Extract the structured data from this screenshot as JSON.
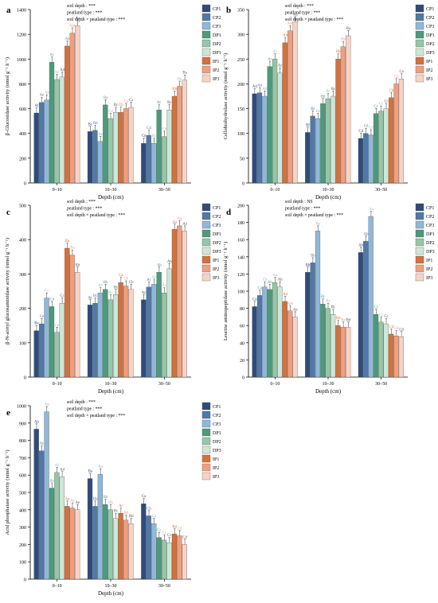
{
  "colors": {
    "CP1": "#2f4b7c",
    "CP2": "#4f79a8",
    "CP3": "#8fb8d8",
    "DP1": "#4b9a7a",
    "DP2": "#95c6a8",
    "DP3": "#cfe6d6",
    "IP1": "#d6703a",
    "IP2": "#ef9f7f",
    "IP3": "#f8d3c4"
  },
  "chart_data": [
    {
      "type": "bar",
      "panel": "a",
      "ylabel": "β-Glucosidase activity (nmol g⁻¹ h⁻¹)",
      "xlabel": "Depth (cm)",
      "categories": [
        "0–10",
        "10–30",
        "30–50"
      ],
      "ylim": [
        0,
        1400
      ],
      "yticks": [
        0,
        200,
        400,
        600,
        800,
        1000,
        1200,
        1400
      ],
      "stats": [
        "soil depth : ***",
        "peatland type : ***",
        "soil depth × peatland type : ***"
      ],
      "legend": [
        "CP1",
        "CP2",
        "CP3",
        "DP1",
        "DP2",
        "DP3",
        "IP1",
        "IP2",
        "IP3"
      ],
      "series": [
        {
          "name": "CP1",
          "values": [
            565,
            415,
            320
          ],
          "labels": [
            "Af",
            "Bc",
            "Ce"
          ]
        },
        {
          "name": "CP2",
          "values": [
            650,
            425,
            385
          ],
          "labels": [
            "Ae",
            "Bd",
            "Cd"
          ]
        },
        {
          "name": "CP3",
          "values": [
            670,
            335,
            320
          ],
          "labels": [
            "Ae",
            "Be",
            "Bc"
          ]
        },
        {
          "name": "DP1",
          "values": [
            975,
            630,
            590
          ],
          "labels": [
            "Ac",
            "Ba",
            "Bc"
          ]
        },
        {
          "name": "DP2",
          "values": [
            835,
            520,
            375
          ],
          "labels": [
            "Ad",
            "Cd",
            "Cd"
          ]
        },
        {
          "name": "DP3",
          "values": [
            855,
            570,
            590
          ],
          "labels": [
            "Ad",
            "Bc",
            "Bc"
          ]
        },
        {
          "name": "IP1",
          "values": [
            1105,
            570,
            700
          ],
          "labels": [
            "Ab",
            "Cb",
            "Bb"
          ]
        },
        {
          "name": "IP2",
          "values": [
            1210,
            600,
            780
          ],
          "labels": [
            "Aab",
            "Ca",
            "Ba"
          ]
        },
        {
          "name": "IP3",
          "values": [
            1270,
            610,
            830
          ],
          "labels": [
            "Aa",
            "Ca",
            "Ba"
          ]
        }
      ]
    },
    {
      "type": "bar",
      "panel": "b",
      "ylabel": "Cellobiohydrolase activity (nmol g⁻¹ h⁻¹)",
      "xlabel": "Depth (cm)",
      "categories": [
        "0–10",
        "10–30",
        "30–50"
      ],
      "ylim": [
        0,
        350
      ],
      "yticks": [
        0,
        50,
        100,
        150,
        200,
        250,
        300,
        350
      ],
      "stats": [
        "soil depth : ***",
        "peatland type : ***",
        "soil depth × peatland type : ***"
      ],
      "legend": [
        "CP1",
        "CP2",
        "CP3",
        "DP1",
        "DP2",
        "DP3",
        "IP1",
        "IP2",
        "IP3"
      ],
      "series": [
        {
          "name": "CP1",
          "values": [
            180,
            102,
            90
          ],
          "labels": [
            "Ad",
            "Bf",
            "Cd"
          ]
        },
        {
          "name": "CP2",
          "values": [
            182,
            135,
            100
          ],
          "labels": [
            "Ad",
            "Be",
            "Cd"
          ]
        },
        {
          "name": "CP3",
          "values": [
            175,
            130,
            97
          ],
          "labels": [
            "Ad",
            "Be",
            "Cd"
          ]
        },
        {
          "name": "DP1",
          "values": [
            235,
            160,
            140
          ],
          "labels": [
            "Ac",
            "Bd",
            "Cc"
          ]
        },
        {
          "name": "DP2",
          "values": [
            250,
            170,
            145
          ],
          "labels": [
            "Ac",
            "Bc",
            "Cc"
          ]
        },
        {
          "name": "DP3",
          "values": [
            222,
            175,
            150
          ],
          "labels": [
            "Ac",
            "Bc",
            "Cc"
          ]
        },
        {
          "name": "IP1",
          "values": [
            283,
            250,
            172
          ],
          "labels": [
            "Ab",
            "Bb",
            "Cb"
          ]
        },
        {
          "name": "IP2",
          "values": [
            307,
            275,
            200
          ],
          "labels": [
            "Aab",
            "Bb",
            "Cb"
          ]
        },
        {
          "name": "IP3",
          "values": [
            325,
            297,
            210
          ],
          "labels": [
            "Aa",
            "Ba",
            "Ca"
          ]
        }
      ]
    },
    {
      "type": "bar",
      "panel": "c",
      "ylabel": "β-N-acetyl glucosaminidase activity (nmol g⁻¹ h⁻¹)",
      "xlabel": "Depth (cm)",
      "categories": [
        "0–10",
        "10–30",
        "30–50"
      ],
      "ylim": [
        0,
        500
      ],
      "yticks": [
        0,
        100,
        200,
        300,
        400,
        500
      ],
      "stats": [
        "soil depth : ***",
        "peatland type : ***",
        "soil depth × peatland type : ***"
      ],
      "legend": [
        "CP1",
        "CP2",
        "CP3",
        "DP1",
        "DP2",
        "DP3",
        "IP1",
        "IP2",
        "IP3"
      ],
      "series": [
        {
          "name": "CP1",
          "values": [
            135,
            210,
            225
          ],
          "labels": [
            "Be",
            "Ac",
            "Ac"
          ]
        },
        {
          "name": "CP2",
          "values": [
            155,
            215,
            262
          ],
          "labels": [
            "Ce",
            "Bc",
            "Ac"
          ]
        },
        {
          "name": "CP3",
          "values": [
            230,
            245,
            270
          ],
          "labels": [
            "Cc",
            "Bc",
            "Ac"
          ]
        },
        {
          "name": "DP1",
          "values": [
            205,
            255,
            305
          ],
          "labels": [
            "Cd",
            "Bb",
            "Ab"
          ]
        },
        {
          "name": "DP2",
          "values": [
            130,
            225,
            245
          ],
          "labels": [
            "Ce",
            "Bc",
            "Ac"
          ]
        },
        {
          "name": "DP3",
          "values": [
            215,
            240,
            315
          ],
          "labels": [
            "Cc",
            "Bc",
            "Ab"
          ]
        },
        {
          "name": "IP1",
          "values": [
            375,
            275,
            430
          ],
          "labels": [
            "Ba",
            "Ca",
            "Aa"
          ]
        },
        {
          "name": "IP2",
          "values": [
            355,
            265,
            440
          ],
          "labels": [
            "Ba",
            "Cb",
            "Aa"
          ]
        },
        {
          "name": "IP3",
          "values": [
            305,
            255,
            425
          ],
          "labels": [
            "Bb",
            "Cb",
            "Aa"
          ]
        }
      ]
    },
    {
      "type": "bar",
      "panel": "d",
      "ylabel": "Leucine aminopeptidase activity (nmol g⁻¹ h⁻¹)",
      "xlabel": "Depth (cm)",
      "categories": [
        "0–10",
        "10–30",
        "30–50"
      ],
      "ylim": [
        0,
        200
      ],
      "yticks": [
        0,
        20,
        40,
        60,
        80,
        100,
        120,
        140,
        160,
        180,
        200
      ],
      "stats": [
        "soil depth : NS",
        "peatland type : ***",
        "soil depth × peatland type : ***"
      ],
      "legend": [
        "CP1",
        "CP2",
        "CP3",
        "DP1",
        "DP2",
        "DP3",
        "IP1",
        "IP2",
        "IP3"
      ],
      "series": [
        {
          "name": "CP1",
          "values": [
            82,
            122,
            145
          ],
          "labels": [
            "Ce",
            "Bb",
            "Ab"
          ]
        },
        {
          "name": "CP2",
          "values": [
            95,
            133,
            158
          ],
          "labels": [
            "Ca",
            "Bb",
            "Ab"
          ]
        },
        {
          "name": "CP3",
          "values": [
            105,
            170,
            187
          ],
          "labels": [
            "Cb",
            "Ba",
            "Aa"
          ]
        },
        {
          "name": "DP1",
          "values": [
            102,
            85,
            73
          ],
          "labels": [
            "Ab",
            "Bc",
            "Cc"
          ]
        },
        {
          "name": "DP2",
          "values": [
            110,
            80,
            64
          ],
          "labels": [
            "Aa",
            "Bc",
            "Cc"
          ]
        },
        {
          "name": "DP3",
          "values": [
            105,
            73,
            62
          ],
          "labels": [
            "Ab",
            "Bc",
            "Cc"
          ]
        },
        {
          "name": "IP1",
          "values": [
            88,
            60,
            50
          ],
          "labels": [
            "Ad",
            "Bd",
            "Cd"
          ]
        },
        {
          "name": "IP2",
          "values": [
            77,
            58,
            48
          ],
          "labels": [
            "Ade",
            "Bd",
            "Cd"
          ]
        },
        {
          "name": "IP3",
          "values": [
            70,
            58,
            47
          ],
          "labels": [
            "Ae",
            "Bd",
            "Cd"
          ]
        }
      ]
    },
    {
      "type": "bar",
      "panel": "e",
      "ylabel": "Acid phosphatase activity (nmol g⁻¹ h⁻¹)",
      "xlabel": "Depth (cm)",
      "categories": [
        "0–10",
        "10–30",
        "30–50"
      ],
      "ylim": [
        0,
        1000
      ],
      "yticks": [
        0,
        100,
        200,
        300,
        400,
        500,
        600,
        700,
        800,
        900,
        1000
      ],
      "stats": [
        "soil depth : ***",
        "peatland type : ***",
        "soil depth × peatland type : ***"
      ],
      "legend": [
        "CP1",
        "CP2",
        "CP3",
        "DP1",
        "DP2",
        "DP3",
        "IP1",
        "IP2",
        "IP3"
      ],
      "series": [
        {
          "name": "CP1",
          "values": [
            865,
            580,
            435
          ],
          "labels": [
            "Ab",
            "Ba",
            "Ca"
          ]
        },
        {
          "name": "CP2",
          "values": [
            740,
            420,
            365
          ],
          "labels": [
            "Ac",
            "Bb",
            "Cb"
          ]
        },
        {
          "name": "CP3",
          "values": [
            965,
            605,
            320
          ],
          "labels": [
            "Aa",
            "Ba",
            "Cb"
          ]
        },
        {
          "name": "DP1",
          "values": [
            525,
            430,
            240
          ],
          "labels": [
            "Ac",
            "Bb",
            "Cc"
          ]
        },
        {
          "name": "DP2",
          "values": [
            615,
            400,
            225
          ],
          "labels": [
            "Ad",
            "Bb",
            "Cc"
          ]
        },
        {
          "name": "DP3",
          "values": [
            590,
            350,
            210
          ],
          "labels": [
            "Ad",
            "Bc",
            "Cc"
          ]
        },
        {
          "name": "IP1",
          "values": [
            420,
            380,
            260
          ],
          "labels": [
            "Ae",
            "Ac",
            "Bd"
          ]
        },
        {
          "name": "IP2",
          "values": [
            410,
            340,
            250
          ],
          "labels": [
            "Ae",
            "Bd",
            "Cd"
          ]
        },
        {
          "name": "IP3",
          "values": [
            400,
            320,
            200
          ],
          "labels": [
            "Ae",
            "Bd",
            "Cd"
          ]
        }
      ]
    }
  ]
}
